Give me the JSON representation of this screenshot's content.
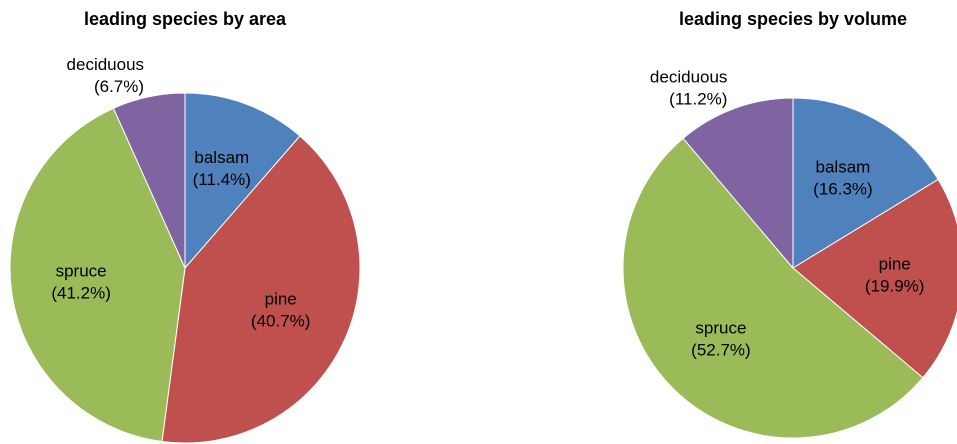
{
  "chart_data": [
    {
      "type": "pie",
      "title": "leading species by area",
      "categories": [
        "balsam",
        "pine",
        "spruce",
        "deciduous"
      ],
      "values": [
        11.4,
        40.7,
        41.2,
        6.7
      ],
      "value_labels": [
        "(11.4%)",
        "(40.7%)",
        "(41.2%)",
        "(6.7%)"
      ],
      "colors": [
        "#4f81bd",
        "#c0504d",
        "#9bbb59",
        "#8064a2"
      ],
      "label_position": [
        "inside",
        "inside",
        "inside",
        "outside"
      ]
    },
    {
      "type": "pie",
      "title": "leading species by volume",
      "categories": [
        "balsam",
        "pine",
        "spruce",
        "deciduous"
      ],
      "values": [
        16.3,
        19.9,
        52.7,
        11.2
      ],
      "value_labels": [
        "(16.3%)",
        "(19.9%)",
        "(52.7%)",
        "(11.2%)"
      ],
      "colors": [
        "#4f81bd",
        "#c0504d",
        "#9bbb59",
        "#8064a2"
      ],
      "label_position": [
        "inside",
        "inside",
        "inside",
        "outside"
      ]
    }
  ]
}
